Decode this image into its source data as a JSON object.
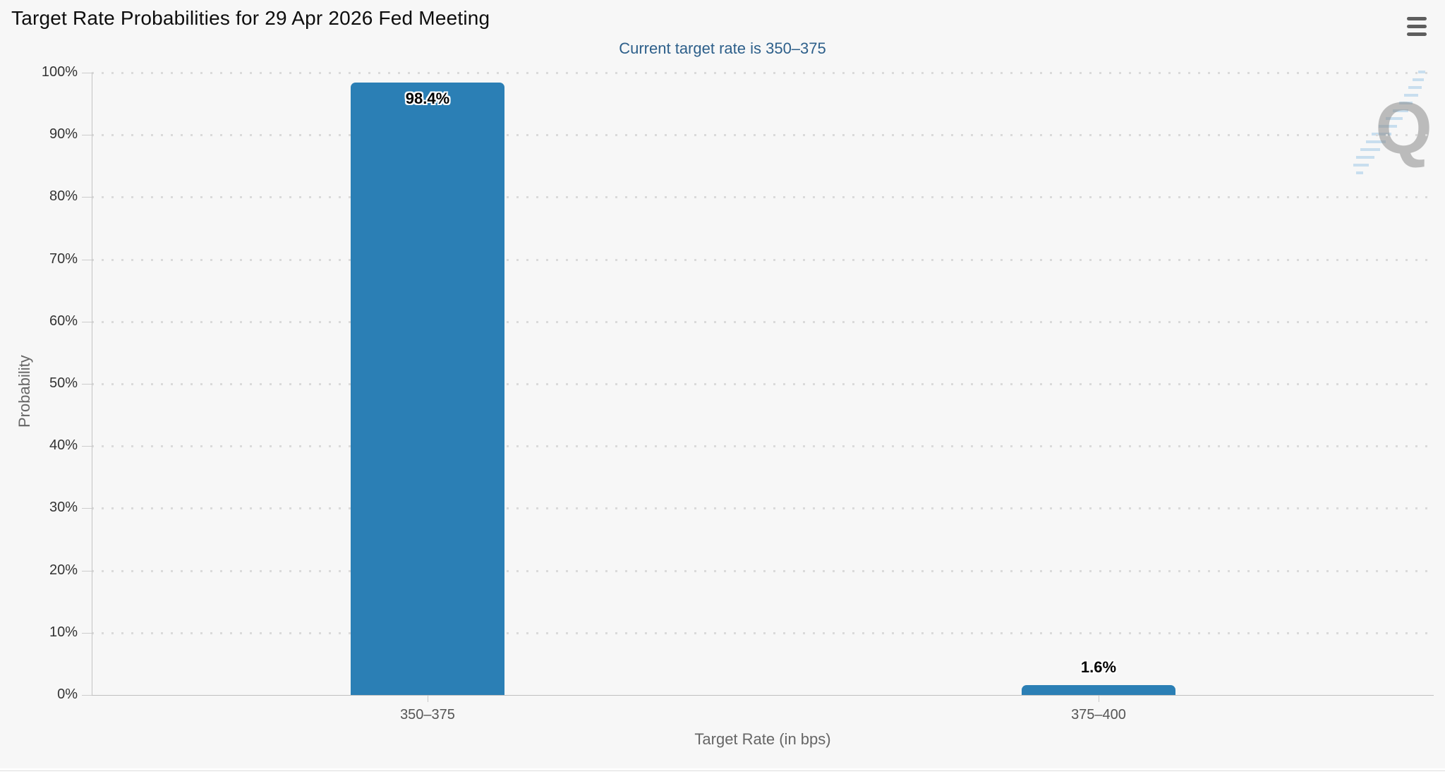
{
  "chart_data": {
    "type": "bar",
    "title": "Target Rate Probabilities for 29 Apr 2026 Fed Meeting",
    "subtitle": "Current target rate is 350–375",
    "categories": [
      "350–375",
      "375–400"
    ],
    "values": [
      98.4,
      1.6
    ],
    "value_labels": [
      "98.4%",
      "1.6%"
    ],
    "xlabel": "Target Rate (in bps)",
    "ylabel": "Probability",
    "ylim": [
      0,
      100
    ],
    "ytick_labels": [
      "0%",
      "10%",
      "20%",
      "30%",
      "40%",
      "50%",
      "60%",
      "70%",
      "80%",
      "90%",
      "100%"
    ],
    "grid": "horizontal-dotted",
    "legend": "none",
    "bar_color": "#2b7fb5"
  },
  "header": {
    "menu_icon": "hamburger-icon"
  },
  "watermark": {
    "letter": "Q"
  },
  "colors": {
    "background": "#f7f7f7",
    "bar": "#2b7fb5",
    "subtitle_text": "#2d5f8a",
    "grid_dots": "#dadada",
    "axis_text": "#333333",
    "axis_title_text": "#666666"
  }
}
